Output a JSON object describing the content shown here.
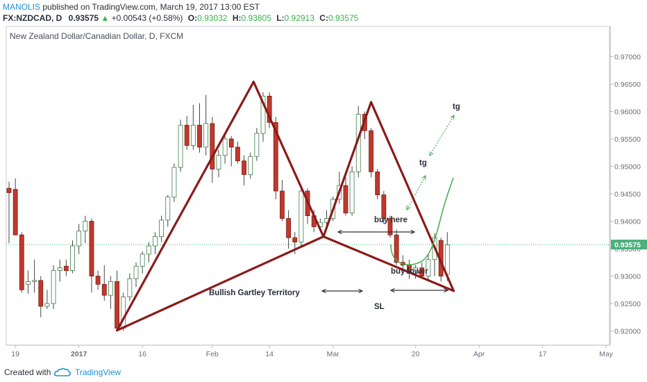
{
  "header": {
    "author": "MANOLIS",
    "published": " published on TradingView.com, March 19, 2017 13:00 EST",
    "symbol": "FX:NZDCAD, D",
    "last": "0.93575",
    "change": "+0.00543 (+0.58%)",
    "o_label": "O:",
    "o": "0.93032",
    "h_label": "H:",
    "h": "0.93805",
    "l_label": "L:",
    "l": "0.92913",
    "c_label": "C:",
    "c": "0.93575"
  },
  "footer": {
    "created": "Created with",
    "brand": "TradingView"
  },
  "colors": {
    "bull": "#ffffff",
    "bear": "#c0392b",
    "pattern": "#8b1a1a",
    "projection": "#4caf50",
    "last_price": "#4caf7d",
    "brand": "#1e90d6"
  },
  "chart_data": {
    "type": "candlestick",
    "title": "New Zealand Dollar/Canadian Dollar, D, FXCM",
    "ylim": [
      0.9155,
      0.9715
    ],
    "y_ticks": [
      "0.92000",
      "0.92500",
      "0.93000",
      "0.93500",
      "0.94000",
      "0.94500",
      "0.95000",
      "0.95500",
      "0.96000",
      "0.96500",
      "0.97000"
    ],
    "y_tick_values": [
      0.92,
      0.925,
      0.93,
      0.935,
      0.94,
      0.945,
      0.95,
      0.955,
      0.96,
      0.965,
      0.97
    ],
    "x_tick_labels": [
      {
        "label": "19",
        "bar": 1
      },
      {
        "label": "2017",
        "bar": 11,
        "bold": true
      },
      {
        "label": "16",
        "bar": 21
      },
      {
        "label": "Feb",
        "bar": 32
      },
      {
        "label": "14",
        "bar": 41
      },
      {
        "label": "Mar",
        "bar": 51
      },
      {
        "label": "20",
        "bar": 64
      },
      {
        "label": "Apr",
        "bar": 74
      },
      {
        "label": "17",
        "bar": 84
      },
      {
        "label": "May",
        "bar": 94
      }
    ],
    "last_price": 0.93575,
    "last_price_label": "0.93575",
    "candles": [
      {
        "o": 0.946,
        "h": 0.9472,
        "l": 0.936,
        "c": 0.9452
      },
      {
        "o": 0.9458,
        "h": 0.9478,
        "l": 0.938,
        "c": 0.9375
      },
      {
        "o": 0.9375,
        "h": 0.938,
        "l": 0.927,
        "c": 0.9275
      },
      {
        "o": 0.9285,
        "h": 0.931,
        "l": 0.9268,
        "c": 0.929
      },
      {
        "o": 0.929,
        "h": 0.933,
        "l": 0.927,
        "c": 0.9292
      },
      {
        "o": 0.9292,
        "h": 0.93,
        "l": 0.9225,
        "c": 0.9245
      },
      {
        "o": 0.9245,
        "h": 0.9275,
        "l": 0.924,
        "c": 0.925
      },
      {
        "o": 0.925,
        "h": 0.932,
        "l": 0.924,
        "c": 0.931
      },
      {
        "o": 0.931,
        "h": 0.933,
        "l": 0.929,
        "c": 0.9315
      },
      {
        "o": 0.9318,
        "h": 0.933,
        "l": 0.93,
        "c": 0.931
      },
      {
        "o": 0.931,
        "h": 0.9365,
        "l": 0.9305,
        "c": 0.9355
      },
      {
        "o": 0.9355,
        "h": 0.9395,
        "l": 0.934,
        "c": 0.9382
      },
      {
        "o": 0.9382,
        "h": 0.941,
        "l": 0.936,
        "c": 0.94
      },
      {
        "o": 0.94,
        "h": 0.9405,
        "l": 0.927,
        "c": 0.93
      },
      {
        "o": 0.93,
        "h": 0.931,
        "l": 0.9275,
        "c": 0.9285
      },
      {
        "o": 0.9285,
        "h": 0.932,
        "l": 0.9255,
        "c": 0.9265
      },
      {
        "o": 0.9265,
        "h": 0.93,
        "l": 0.924,
        "c": 0.929
      },
      {
        "o": 0.929,
        "h": 0.931,
        "l": 0.92,
        "c": 0.9205
      },
      {
        "o": 0.9205,
        "h": 0.927,
        "l": 0.92,
        "c": 0.9262
      },
      {
        "o": 0.9262,
        "h": 0.9305,
        "l": 0.9255,
        "c": 0.9295
      },
      {
        "o": 0.9295,
        "h": 0.9325,
        "l": 0.928,
        "c": 0.9318
      },
      {
        "o": 0.9318,
        "h": 0.9345,
        "l": 0.9305,
        "c": 0.934
      },
      {
        "o": 0.934,
        "h": 0.9362,
        "l": 0.9325,
        "c": 0.9355
      },
      {
        "o": 0.9355,
        "h": 0.938,
        "l": 0.934,
        "c": 0.9372
      },
      {
        "o": 0.9372,
        "h": 0.941,
        "l": 0.9362,
        "c": 0.9402
      },
      {
        "o": 0.9402,
        "h": 0.9448,
        "l": 0.939,
        "c": 0.9444
      },
      {
        "o": 0.9444,
        "h": 0.9505,
        "l": 0.9435,
        "c": 0.9498
      },
      {
        "o": 0.9498,
        "h": 0.9585,
        "l": 0.949,
        "c": 0.9575
      },
      {
        "o": 0.9575,
        "h": 0.9592,
        "l": 0.953,
        "c": 0.9538
      },
      {
        "o": 0.9538,
        "h": 0.9612,
        "l": 0.953,
        "c": 0.9575
      },
      {
        "o": 0.9575,
        "h": 0.9615,
        "l": 0.9525,
        "c": 0.9535
      },
      {
        "o": 0.9535,
        "h": 0.963,
        "l": 0.952,
        "c": 0.9578
      },
      {
        "o": 0.9578,
        "h": 0.959,
        "l": 0.947,
        "c": 0.9495
      },
      {
        "o": 0.9495,
        "h": 0.953,
        "l": 0.948,
        "c": 0.952
      },
      {
        "o": 0.952,
        "h": 0.956,
        "l": 0.9505,
        "c": 0.955
      },
      {
        "o": 0.955,
        "h": 0.9555,
        "l": 0.95,
        "c": 0.9535
      },
      {
        "o": 0.9535,
        "h": 0.9545,
        "l": 0.9505,
        "c": 0.951
      },
      {
        "o": 0.951,
        "h": 0.952,
        "l": 0.9465,
        "c": 0.9485
      },
      {
        "o": 0.9485,
        "h": 0.9525,
        "l": 0.9478,
        "c": 0.9518
      },
      {
        "o": 0.9518,
        "h": 0.957,
        "l": 0.951,
        "c": 0.956
      },
      {
        "o": 0.956,
        "h": 0.9635,
        "l": 0.9545,
        "c": 0.9628
      },
      {
        "o": 0.9628,
        "h": 0.9635,
        "l": 0.957,
        "c": 0.958
      },
      {
        "o": 0.958,
        "h": 0.959,
        "l": 0.944,
        "c": 0.9455
      },
      {
        "o": 0.9455,
        "h": 0.9475,
        "l": 0.94,
        "c": 0.9405
      },
      {
        "o": 0.9405,
        "h": 0.942,
        "l": 0.935,
        "c": 0.937
      },
      {
        "o": 0.937,
        "h": 0.938,
        "l": 0.934,
        "c": 0.9362
      },
      {
        "o": 0.9362,
        "h": 0.946,
        "l": 0.9355,
        "c": 0.9455
      },
      {
        "o": 0.9455,
        "h": 0.946,
        "l": 0.9395,
        "c": 0.941
      },
      {
        "o": 0.941,
        "h": 0.942,
        "l": 0.938,
        "c": 0.939
      },
      {
        "o": 0.939,
        "h": 0.9405,
        "l": 0.9385,
        "c": 0.9398
      },
      {
        "o": 0.9398,
        "h": 0.942,
        "l": 0.939,
        "c": 0.9405
      },
      {
        "o": 0.9405,
        "h": 0.9445,
        "l": 0.94,
        "c": 0.944
      },
      {
        "o": 0.944,
        "h": 0.949,
        "l": 0.9432,
        "c": 0.9465
      },
      {
        "o": 0.9465,
        "h": 0.948,
        "l": 0.941,
        "c": 0.9415
      },
      {
        "o": 0.9415,
        "h": 0.95,
        "l": 0.941,
        "c": 0.949
      },
      {
        "o": 0.949,
        "h": 0.961,
        "l": 0.948,
        "c": 0.9595
      },
      {
        "o": 0.9595,
        "h": 0.96,
        "l": 0.955,
        "c": 0.9565
      },
      {
        "o": 0.9565,
        "h": 0.957,
        "l": 0.948,
        "c": 0.949
      },
      {
        "o": 0.949,
        "h": 0.9495,
        "l": 0.944,
        "c": 0.9448
      },
      {
        "o": 0.9448,
        "h": 0.9455,
        "l": 0.9395,
        "c": 0.9405
      },
      {
        "o": 0.9405,
        "h": 0.941,
        "l": 0.937,
        "c": 0.9375
      },
      {
        "o": 0.9375,
        "h": 0.9385,
        "l": 0.932,
        "c": 0.9325
      },
      {
        "o": 0.9325,
        "h": 0.9338,
        "l": 0.931,
        "c": 0.932
      },
      {
        "o": 0.932,
        "h": 0.933,
        "l": 0.9295,
        "c": 0.9305
      },
      {
        "o": 0.9305,
        "h": 0.932,
        "l": 0.9295,
        "c": 0.9315
      },
      {
        "o": 0.9315,
        "h": 0.9325,
        "l": 0.9295,
        "c": 0.93
      },
      {
        "o": 0.93,
        "h": 0.934,
        "l": 0.929,
        "c": 0.933
      },
      {
        "o": 0.933,
        "h": 0.9378,
        "l": 0.93,
        "c": 0.937
      },
      {
        "o": 0.9365,
        "h": 0.937,
        "l": 0.929,
        "c": 0.93
      },
      {
        "o": 0.9303,
        "h": 0.938,
        "l": 0.9291,
        "c": 0.9357
      }
    ],
    "annotations": {
      "gartley_points": [
        [
          17,
          0.9201
        ],
        [
          38.5,
          0.9654
        ],
        [
          49.5,
          0.9372
        ],
        [
          57,
          0.9617
        ],
        [
          70,
          0.9273
        ]
      ],
      "gartley_label": "Bullish Gartley Territory",
      "buy_here": "buy here",
      "buy_lower": "buy lower",
      "sl": "SL",
      "tg1": "tg",
      "tg2": "tg"
    }
  }
}
